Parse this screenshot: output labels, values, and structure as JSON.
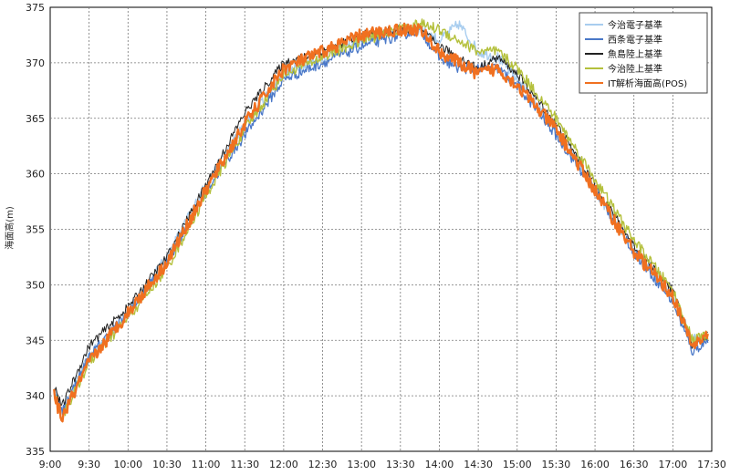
{
  "chart_data": {
    "type": "line",
    "title": "",
    "xlabel": "",
    "ylabel": "海面高(m)",
    "xlim": [
      "9:00",
      "17:30"
    ],
    "ylim": [
      33.5,
      37.5
    ],
    "x_ticks": [
      "9:00",
      "9:30",
      "10:00",
      "10:30",
      "11:00",
      "11:30",
      "12:00",
      "12:30",
      "13:00",
      "13:30",
      "14:00",
      "14:30",
      "15:00",
      "15:30",
      "16:00",
      "16:30",
      "17:00",
      "17:30"
    ],
    "y_ticks": [
      "335",
      "340",
      "345",
      "350",
      "355",
      "360",
      "365",
      "370",
      "375"
    ],
    "grid": true,
    "legend_position": "top-right",
    "x_hours": [
      9.05,
      9.15,
      9.5,
      10.0,
      10.5,
      11.0,
      11.5,
      12.0,
      12.5,
      13.0,
      13.5,
      13.75,
      14.0,
      14.25,
      14.5,
      14.75,
      15.0,
      15.5,
      16.0,
      16.5,
      17.0,
      17.25,
      17.45
    ],
    "series": [
      {
        "name": "今治電子基準",
        "color": "#a8cdef",
        "values": [
          34.05,
          33.85,
          34.35,
          34.75,
          35.25,
          35.9,
          36.45,
          36.9,
          37.05,
          37.2,
          37.3,
          37.3,
          37.2,
          37.35,
          37.1,
          37.05,
          36.85,
          36.4,
          35.85,
          35.3,
          34.9,
          34.5,
          34.55
        ]
      },
      {
        "name": "西条電子基準",
        "color": "#4a78c8",
        "values": [
          34.05,
          33.85,
          34.35,
          34.75,
          35.2,
          35.85,
          36.35,
          36.85,
          37.0,
          37.15,
          37.25,
          37.3,
          37.05,
          36.95,
          36.95,
          36.95,
          36.8,
          36.35,
          35.85,
          35.3,
          34.85,
          34.4,
          34.5
        ]
      },
      {
        "name": "魚島陸上基準",
        "color": "#222222",
        "values": [
          34.1,
          33.9,
          34.45,
          34.8,
          35.25,
          35.9,
          36.55,
          37.0,
          37.1,
          37.25,
          37.3,
          37.3,
          37.15,
          37.05,
          36.95,
          37.05,
          36.9,
          36.45,
          35.9,
          35.35,
          34.95,
          34.45,
          34.55
        ]
      },
      {
        "name": "今治陸上基準",
        "color": "#b4c03c",
        "values": [
          34.05,
          33.8,
          34.3,
          34.7,
          35.15,
          35.8,
          36.4,
          36.9,
          37.05,
          37.2,
          37.3,
          37.35,
          37.3,
          37.2,
          37.1,
          37.1,
          36.95,
          36.5,
          35.95,
          35.4,
          34.95,
          34.5,
          34.55
        ]
      },
      {
        "name": "IT解析海面高(POS)",
        "color": "#f07020",
        "values": [
          34.0,
          33.8,
          34.3,
          34.75,
          35.2,
          35.85,
          36.45,
          36.95,
          37.1,
          37.25,
          37.3,
          37.3,
          37.1,
          37.0,
          36.9,
          36.95,
          36.8,
          36.4,
          35.85,
          35.3,
          34.9,
          34.45,
          34.55
        ]
      }
    ]
  }
}
